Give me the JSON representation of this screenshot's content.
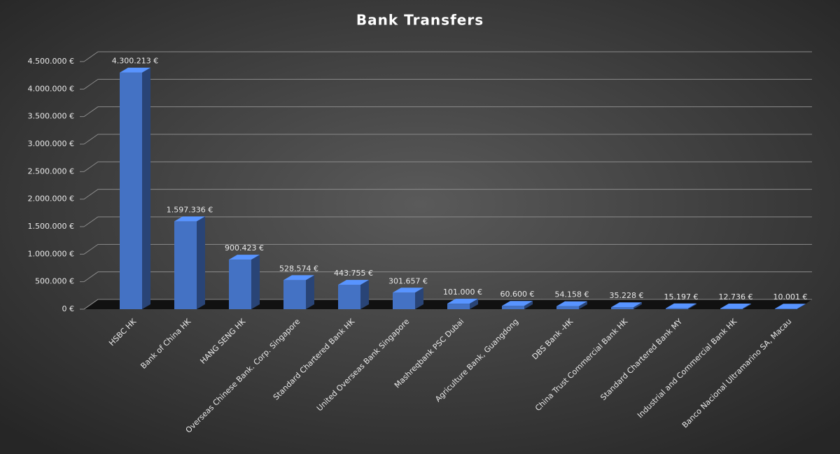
{
  "chart_data": {
    "type": "bar3d",
    "title": "Bank Transfers",
    "categories": [
      "HSBC HK",
      "Bank of China HK",
      "HANG SENG HK",
      "Overseas Chinese Bank. Corp. Singapore",
      "Standard Chartered Bank HK",
      "United Overseas Bank Singapore",
      "Mashreqbank PSC Dubai",
      "Agriculture Bank, Guangdong",
      "DBS Bank -HK",
      "China Trust Commercial Bank HK",
      "Standard Chartered Bank MY",
      "Industrial and Commercial Bank HK",
      "Banco Nacional Ultramarino SA, Macau"
    ],
    "values": [
      4300213,
      1597336,
      900423,
      528574,
      443755,
      301657,
      101000,
      60600,
      54158,
      35228,
      15197,
      12736,
      10001
    ],
    "value_labels": [
      "4.300.213 €",
      "1.597.336 €",
      "900.423 €",
      "528.574 €",
      "443.755 €",
      "301.657 €",
      "101.000 €",
      "60.600 €",
      "54.158 €",
      "35.228 €",
      "15.197 €",
      "12.736 €",
      "10.001 €"
    ],
    "color": "#4472c4",
    "ylim": [
      0,
      4500000
    ],
    "yticks": [
      {
        "value": 0,
        "label": "0 €"
      },
      {
        "value": 500000,
        "label": "500.000 €"
      },
      {
        "value": 1000000,
        "label": "1.000.000 €"
      },
      {
        "value": 1500000,
        "label": "1.500.000 €"
      },
      {
        "value": 2000000,
        "label": "2.000.000 €"
      },
      {
        "value": 2500000,
        "label": "2.500.000 €"
      },
      {
        "value": 3000000,
        "label": "3.000.000 €"
      },
      {
        "value": 3500000,
        "label": "3.500.000 €"
      },
      {
        "value": 4000000,
        "label": "4.000.000 €"
      },
      {
        "value": 4500000,
        "label": "4.500.000 €"
      }
    ],
    "grid": true
  }
}
